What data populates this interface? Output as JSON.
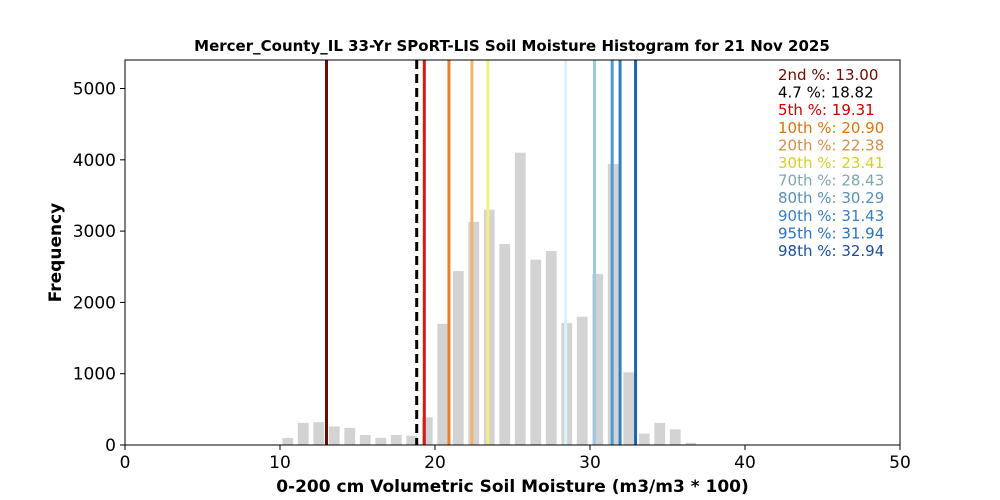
{
  "chart_data": {
    "type": "bar",
    "title": "Mercer_County_IL 33-Yr SPoRT-LIS Soil Moisture Histogram for 21 Nov 2025",
    "xlabel": "0-200 cm Volumetric Soil Moisture (m3/m3 * 100)",
    "ylabel": "Frequency",
    "xlim": [
      0,
      50
    ],
    "ylim": [
      0,
      5400
    ],
    "xticks": [
      0,
      10,
      20,
      30,
      40,
      50
    ],
    "yticks": [
      0,
      1000,
      2000,
      3000,
      4000,
      5000
    ],
    "grid": false,
    "legend_position": "top-right",
    "bar_color": "#d3d3d3",
    "bins": [
      {
        "x": 10.5,
        "value": 100
      },
      {
        "x": 11.5,
        "value": 310
      },
      {
        "x": 12.5,
        "value": 320
      },
      {
        "x": 13.5,
        "value": 260
      },
      {
        "x": 14.5,
        "value": 240
      },
      {
        "x": 15.5,
        "value": 140
      },
      {
        "x": 16.5,
        "value": 100
      },
      {
        "x": 17.5,
        "value": 140
      },
      {
        "x": 18.5,
        "value": 130
      },
      {
        "x": 19.5,
        "value": 390
      },
      {
        "x": 20.5,
        "value": 1700
      },
      {
        "x": 21.5,
        "value": 2440
      },
      {
        "x": 22.5,
        "value": 3130
      },
      {
        "x": 23.5,
        "value": 3300
      },
      {
        "x": 24.5,
        "value": 2820
      },
      {
        "x": 25.5,
        "value": 4100
      },
      {
        "x": 26.5,
        "value": 2600
      },
      {
        "x": 27.5,
        "value": 2720
      },
      {
        "x": 28.5,
        "value": 1710
      },
      {
        "x": 29.5,
        "value": 1800
      },
      {
        "x": 30.5,
        "value": 2400
      },
      {
        "x": 31.5,
        "value": 3940
      },
      {
        "x": 32.5,
        "value": 1020
      },
      {
        "x": 33.5,
        "value": 160
      },
      {
        "x": 34.5,
        "value": 310
      },
      {
        "x": 35.5,
        "value": 220
      },
      {
        "x": 36.5,
        "value": 30
      }
    ],
    "percentile_lines": [
      {
        "label": "2nd %",
        "value": 13.0,
        "color": "#6b0a00",
        "text_color": "#6b0a00",
        "dashed": false
      },
      {
        "label": "4.7 %",
        "value": 18.82,
        "color": "#000000",
        "text_color": "#000000",
        "dashed": true
      },
      {
        "label": "5th %",
        "value": 19.31,
        "color": "#d7191c",
        "text_color": "#c80000",
        "dashed": false
      },
      {
        "label": "10th %",
        "value": 20.9,
        "color": "#e8822a",
        "text_color": "#d9720f",
        "dashed": false
      },
      {
        "label": "20th %",
        "value": 22.38,
        "color": "#f6b26b",
        "text_color": "#d0904a",
        "dashed": false
      },
      {
        "label": "30th %",
        "value": 23.41,
        "color": "#f5f07a",
        "text_color": "#d6cf2a",
        "dashed": false
      },
      {
        "label": "70th %",
        "value": 28.43,
        "color": "#d8f4f8",
        "text_color": "#7fa7b0",
        "dashed": false
      },
      {
        "label": "80th %",
        "value": 30.29,
        "color": "#9ecae1",
        "text_color": "#5b8fb5",
        "dashed": false
      },
      {
        "label": "90th %",
        "value": 31.43,
        "color": "#4f9bd0",
        "text_color": "#3a7fbf",
        "dashed": false
      },
      {
        "label": "95th %",
        "value": 31.94,
        "color": "#2f7fc8",
        "text_color": "#2a6fbf",
        "dashed": false
      },
      {
        "label": "98th %",
        "value": 32.94,
        "color": "#1f5fb0",
        "text_color": "#1c4e9a",
        "dashed": false
      }
    ]
  }
}
